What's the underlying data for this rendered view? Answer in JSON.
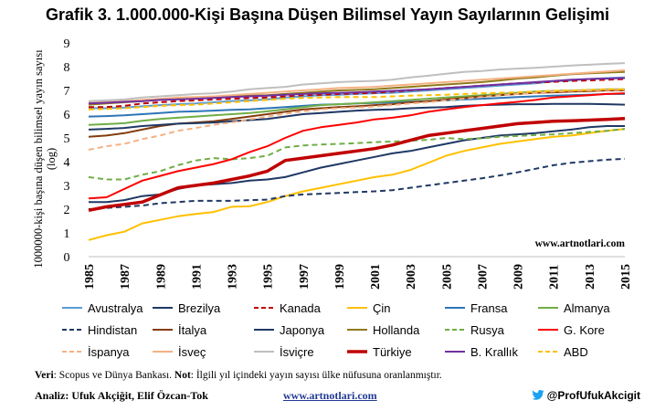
{
  "page": {
    "title": "Grafik 3. 1.000.000-Kişi Başına Düşen Bilimsel Yayın Sayılarının Gelişimi",
    "footer": {
      "source_label": "Veri",
      "source_text": ": Scopus ve Dünya Bankası. ",
      "note_label": "Not",
      "note_text": ": İlgili yıl içindeki yayın sayısı ülke nüfusuna oranlanmıştır.",
      "analysis_label": "Analiz:",
      "analysis_text": " Ufuk Akçiğit, Elif Özcan-Tok",
      "site": "www.artnotlari.com",
      "twitter": "@ProfUfukAkcigit",
      "twitter_icon": "twitter-bird-icon"
    }
  },
  "chart_data": {
    "type": "line",
    "ylabel": "1000000-kişi başına düşen bilimsel yayın sayısı (log)",
    "watermark": "www.artnotlari.com",
    "ylim": [
      0,
      9
    ],
    "yticks": [
      0,
      1,
      2,
      3,
      4,
      5,
      6,
      7,
      8,
      9
    ],
    "xlim": [
      1985,
      2015
    ],
    "xticks": [
      "1985",
      "1987",
      "1989",
      "1991",
      "1993",
      "1995",
      "1997",
      "1999",
      "2001",
      "2003",
      "2005",
      "2007",
      "2009",
      "2011",
      "2013",
      "2015"
    ],
    "grid": false,
    "legend_position": "bottom",
    "x": [
      1985,
      1986,
      1987,
      1988,
      1989,
      1990,
      1991,
      1992,
      1993,
      1994,
      1995,
      1996,
      1997,
      1998,
      1999,
      2000,
      2001,
      2002,
      2003,
      2004,
      2005,
      2006,
      2007,
      2008,
      2009,
      2010,
      2011,
      2012,
      2013,
      2014,
      2015
    ],
    "series": [
      {
        "name": "Avustralya",
        "color": "#5b9bd5",
        "dash": "solid",
        "width": 2,
        "values": [
          6.25,
          6.25,
          6.28,
          6.33,
          6.38,
          6.42,
          6.45,
          6.5,
          6.55,
          6.58,
          6.62,
          6.7,
          6.75,
          6.8,
          6.82,
          6.85,
          6.88,
          6.9,
          6.95,
          7.0,
          7.05,
          7.1,
          7.15,
          7.2,
          7.25,
          7.3,
          7.38,
          7.42,
          7.48,
          7.52,
          7.55
        ]
      },
      {
        "name": "Brezilya",
        "color": "#1f3864",
        "dash": "solid",
        "width": 2,
        "values": [
          2.3,
          2.3,
          2.38,
          2.55,
          2.62,
          2.85,
          3.0,
          3.05,
          3.1,
          3.2,
          3.25,
          3.35,
          3.55,
          3.75,
          3.9,
          4.05,
          4.2,
          4.35,
          4.45,
          4.6,
          4.75,
          4.9,
          5.0,
          5.1,
          5.15,
          5.2,
          5.28,
          5.35,
          5.45,
          5.5,
          5.5
        ]
      },
      {
        "name": "Kanada",
        "color": "#c00000",
        "dash": "dash",
        "width": 2,
        "values": [
          6.3,
          6.3,
          6.35,
          6.45,
          6.5,
          6.55,
          6.58,
          6.62,
          6.65,
          6.68,
          6.7,
          6.75,
          6.8,
          6.82,
          6.85,
          6.87,
          6.9,
          6.95,
          7.0,
          7.05,
          7.1,
          7.15,
          7.2,
          7.25,
          7.3,
          7.33,
          7.36,
          7.4,
          7.42,
          7.45,
          7.48
        ]
      },
      {
        "name": "Çin",
        "color": "#ffc000",
        "dash": "solid",
        "width": 2,
        "values": [
          0.7,
          0.9,
          1.05,
          1.4,
          1.55,
          1.7,
          1.8,
          1.88,
          2.1,
          2.12,
          2.3,
          2.55,
          2.75,
          2.9,
          3.05,
          3.2,
          3.35,
          3.45,
          3.65,
          3.95,
          4.25,
          4.45,
          4.6,
          4.75,
          4.85,
          4.95,
          5.05,
          5.1,
          5.2,
          5.3,
          5.38
        ]
      },
      {
        "name": "Fransa",
        "color": "#2e75b6",
        "dash": "solid",
        "width": 2,
        "values": [
          5.9,
          5.92,
          5.95,
          6.0,
          6.05,
          6.1,
          6.12,
          6.15,
          6.18,
          6.2,
          6.25,
          6.3,
          6.35,
          6.4,
          6.42,
          6.45,
          6.47,
          6.5,
          6.52,
          6.55,
          6.58,
          6.62,
          6.65,
          6.68,
          6.72,
          6.75,
          6.78,
          6.8,
          6.82,
          6.85,
          6.85
        ]
      },
      {
        "name": "Almanya",
        "color": "#70ad47",
        "dash": "solid",
        "width": 2,
        "values": [
          5.55,
          5.58,
          5.62,
          5.72,
          5.8,
          5.85,
          5.9,
          5.95,
          6.0,
          6.05,
          6.12,
          6.2,
          6.3,
          6.38,
          6.42,
          6.45,
          6.5,
          6.55,
          6.6,
          6.65,
          6.7,
          6.75,
          6.8,
          6.85,
          6.9,
          6.95,
          6.98,
          7.0,
          7.02,
          7.05,
          7.05
        ]
      },
      {
        "name": "Hindistan",
        "color": "#1f3864",
        "dash": "dash",
        "width": 2,
        "values": [
          2.0,
          2.05,
          2.1,
          2.15,
          2.25,
          2.3,
          2.35,
          2.35,
          2.35,
          2.38,
          2.4,
          2.55,
          2.62,
          2.65,
          2.68,
          2.72,
          2.75,
          2.8,
          2.9,
          3.0,
          3.1,
          3.2,
          3.3,
          3.42,
          3.55,
          3.7,
          3.85,
          3.95,
          4.02,
          4.08,
          4.12
        ]
      },
      {
        "name": "İtalya",
        "color": "#843c0c",
        "dash": "solid",
        "width": 2,
        "values": [
          5.05,
          5.1,
          5.2,
          5.35,
          5.5,
          5.6,
          5.65,
          5.7,
          5.8,
          5.9,
          6.0,
          6.1,
          6.2,
          6.25,
          6.3,
          6.33,
          6.38,
          6.42,
          6.5,
          6.55,
          6.62,
          6.68,
          6.75,
          6.8,
          6.85,
          6.9,
          6.92,
          6.95,
          6.97,
          7.0,
          7.0
        ]
      },
      {
        "name": "Japonya",
        "color": "#203864",
        "dash": "solid",
        "width": 2,
        "values": [
          5.35,
          5.38,
          5.42,
          5.5,
          5.55,
          5.6,
          5.62,
          5.65,
          5.7,
          5.75,
          5.8,
          5.9,
          6.0,
          6.05,
          6.1,
          6.15,
          6.18,
          6.2,
          6.25,
          6.28,
          6.3,
          6.35,
          6.38,
          6.4,
          6.42,
          6.42,
          6.43,
          6.43,
          6.43,
          6.42,
          6.4
        ]
      },
      {
        "name": "Hollanda",
        "color": "#8f7a1a",
        "dash": "solid",
        "width": 2,
        "values": [
          6.4,
          6.45,
          6.5,
          6.55,
          6.6,
          6.65,
          6.7,
          6.72,
          6.75,
          6.78,
          6.8,
          6.85,
          6.9,
          6.95,
          7.0,
          7.02,
          7.05,
          7.1,
          7.15,
          7.2,
          7.25,
          7.3,
          7.35,
          7.42,
          7.5,
          7.55,
          7.62,
          7.68,
          7.72,
          7.75,
          7.78
        ]
      },
      {
        "name": "Rusya",
        "color": "#70ad47",
        "dash": "dash",
        "width": 2,
        "values": [
          3.35,
          3.25,
          3.25,
          3.45,
          3.6,
          3.85,
          4.05,
          4.15,
          4.1,
          4.15,
          4.25,
          4.6,
          4.68,
          4.72,
          4.75,
          4.78,
          4.82,
          4.85,
          4.88,
          4.92,
          5.0,
          4.95,
          4.98,
          5.05,
          5.08,
          5.12,
          5.15,
          5.2,
          5.25,
          5.3,
          5.38
        ]
      },
      {
        "name": "G. Kore",
        "color": "#ff0000",
        "dash": "solid",
        "width": 2,
        "values": [
          2.45,
          2.5,
          2.85,
          3.2,
          3.4,
          3.6,
          3.75,
          3.9,
          4.1,
          4.4,
          4.65,
          5.0,
          5.3,
          5.45,
          5.55,
          5.65,
          5.78,
          5.85,
          5.95,
          6.1,
          6.2,
          6.3,
          6.38,
          6.45,
          6.52,
          6.6,
          6.7,
          6.75,
          6.8,
          6.85,
          6.88
        ]
      },
      {
        "name": "İspanya",
        "color": "#f4b183",
        "dash": "dash",
        "width": 2,
        "values": [
          4.5,
          4.65,
          4.75,
          4.95,
          5.1,
          5.3,
          5.42,
          5.55,
          5.65,
          5.78,
          5.9,
          6.02,
          6.12,
          6.2,
          6.25,
          6.28,
          6.32,
          6.38,
          6.45,
          6.5,
          6.58,
          6.65,
          6.72,
          6.8,
          6.85,
          6.9,
          6.95,
          6.98,
          7.0,
          7.02,
          7.02
        ]
      },
      {
        "name": "İsveç",
        "color": "#f4b183",
        "dash": "solid",
        "width": 2,
        "values": [
          6.5,
          6.52,
          6.55,
          6.6,
          6.65,
          6.7,
          6.72,
          6.75,
          6.8,
          6.85,
          6.9,
          6.95,
          7.0,
          7.05,
          7.1,
          7.12,
          7.15,
          7.2,
          7.25,
          7.3,
          7.35,
          7.4,
          7.45,
          7.5,
          7.55,
          7.6,
          7.65,
          7.7,
          7.75,
          7.8,
          7.85
        ]
      },
      {
        "name": "İsviçre",
        "color": "#bfbfbf",
        "dash": "solid",
        "width": 2,
        "values": [
          6.55,
          6.58,
          6.62,
          6.7,
          6.75,
          6.8,
          6.85,
          6.88,
          6.95,
          7.05,
          7.1,
          7.15,
          7.25,
          7.3,
          7.35,
          7.38,
          7.4,
          7.45,
          7.55,
          7.62,
          7.7,
          7.78,
          7.82,
          7.88,
          7.92,
          7.95,
          8.0,
          8.05,
          8.08,
          8.12,
          8.15
        ]
      },
      {
        "name": "Türkiye",
        "color": "#c00000",
        "dash": "solid",
        "width": 3.5,
        "values": [
          1.95,
          2.1,
          2.2,
          2.3,
          2.6,
          2.9,
          3.0,
          3.1,
          3.25,
          3.4,
          3.6,
          4.05,
          4.15,
          4.25,
          4.35,
          4.45,
          4.55,
          4.7,
          4.9,
          5.1,
          5.2,
          5.3,
          5.4,
          5.5,
          5.6,
          5.65,
          5.7,
          5.72,
          5.75,
          5.78,
          5.82
        ]
      },
      {
        "name": "B. Krallık",
        "color": "#7030a0",
        "dash": "solid",
        "width": 2,
        "values": [
          6.45,
          6.48,
          6.52,
          6.55,
          6.6,
          6.62,
          6.65,
          6.68,
          6.72,
          6.75,
          6.78,
          6.82,
          6.85,
          6.88,
          6.9,
          6.92,
          6.95,
          6.98,
          7.02,
          7.05,
          7.1,
          7.15,
          7.2,
          7.25,
          7.3,
          7.35,
          7.4,
          7.45,
          7.48,
          7.5,
          7.52
        ]
      },
      {
        "name": "ABD",
        "color": "#ffc000",
        "dash": "dash",
        "width": 2,
        "values": [
          6.2,
          6.22,
          6.25,
          6.3,
          6.35,
          6.38,
          6.4,
          6.45,
          6.5,
          6.55,
          6.6,
          6.65,
          6.68,
          6.7,
          6.72,
          6.72,
          6.72,
          6.75,
          6.78,
          6.8,
          6.82,
          6.85,
          6.88,
          6.9,
          6.92,
          6.95,
          6.98,
          7.0,
          7.02,
          7.05,
          7.05
        ]
      }
    ]
  }
}
